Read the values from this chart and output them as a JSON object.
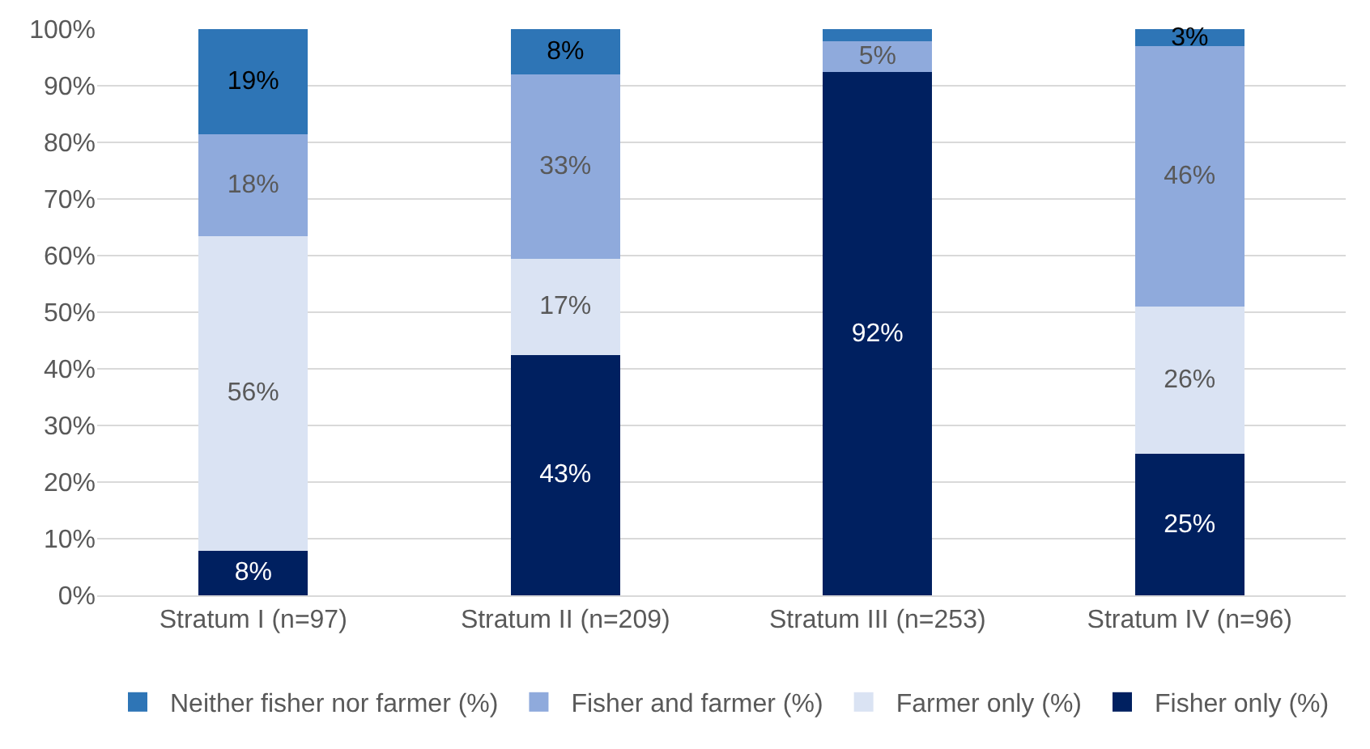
{
  "chart_data": {
    "type": "bar",
    "stacked": true,
    "categories": [
      "Stratum I (n=97)",
      "Stratum II (n=209)",
      "Stratum III (n=253)",
      "Stratum IV (n=96)"
    ],
    "series": [
      {
        "name": "Fisher only (%)",
        "color": "#002060",
        "values": [
          7.9,
          42.5,
          92.4,
          25
        ],
        "value_labels": [
          "8%",
          "43%",
          "92%",
          "25%"
        ]
      },
      {
        "name": "Farmer only (%)",
        "color": "#dae3f3",
        "values": [
          55.6,
          17,
          0,
          26
        ],
        "value_labels": [
          "56%",
          "17%",
          null,
          "26%"
        ]
      },
      {
        "name": "Fisher and farmer (%)",
        "color": "#8faadc",
        "values": [
          18.0,
          32.5,
          5.4,
          46
        ],
        "value_labels": [
          "18%",
          "33%",
          "5%",
          "46%"
        ]
      },
      {
        "name": "Neither fisher nor farmer (%)",
        "color": "#2e75b6",
        "values": [
          18.5,
          8,
          2.2,
          3
        ],
        "value_labels": [
          "19%",
          "8%",
          null,
          "3%"
        ]
      }
    ],
    "ylim": [
      0,
      100
    ],
    "yticks": [
      {
        "value": 0,
        "label": "0%"
      },
      {
        "value": 10,
        "label": "10%"
      },
      {
        "value": 20,
        "label": "20%"
      },
      {
        "value": 30,
        "label": "30%"
      },
      {
        "value": 40,
        "label": "40%"
      },
      {
        "value": 50,
        "label": "50%"
      },
      {
        "value": 60,
        "label": "60%"
      },
      {
        "value": 70,
        "label": "70%"
      },
      {
        "value": 80,
        "label": "80%"
      },
      {
        "value": 90,
        "label": "90%"
      },
      {
        "value": 100,
        "label": "100%"
      }
    ],
    "grid": "y",
    "legend": "bottom"
  }
}
